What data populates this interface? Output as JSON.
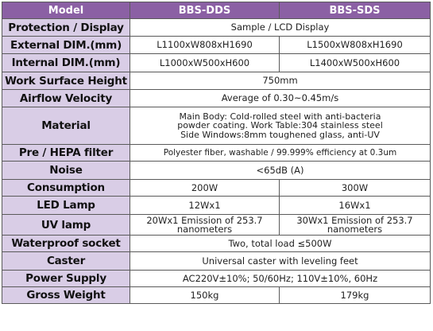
{
  "header": {
    "model": "Model",
    "col_a": "BBS-DDS",
    "col_b": "BBS-SDS"
  },
  "rows": {
    "protection": {
      "label": "Protection / Display",
      "value": "Sample / LCD Display"
    },
    "external": {
      "label": "External DIM.(mm)",
      "a": "L1100xW808xH1690",
      "b": "L1500xW808xH1690"
    },
    "internal": {
      "label": "Internal DIM.(mm)",
      "a": "L1000xW500xH600",
      "b": "L1400xW500xH600"
    },
    "work_height": {
      "label": "Work Surface Height",
      "value": "750mm"
    },
    "airflow": {
      "label": "Airflow Velocity",
      "value": "Average of 0.30~0.45m/s"
    },
    "material": {
      "label": "Material",
      "line1": "Main Body: Cold-rolled steel with anti-bacteria",
      "line2": "powder coating.  Work Table:304 stainless steel",
      "line3": "Side Windows:8mm toughened glass, anti-UV"
    },
    "filter": {
      "label": "Pre / HEPA filter",
      "value": "Polyester fiber, washable / 99.999% efficiency at 0.3um"
    },
    "noise": {
      "label": "Noise",
      "value": "<65dB (A)"
    },
    "consumption": {
      "label": "Consumption",
      "a": "200W",
      "b": "300W"
    },
    "led": {
      "label": "LED Lamp",
      "a": "12Wx1",
      "b": "16Wx1"
    },
    "uv": {
      "label": "UV lamp",
      "a_line1": "20Wx1 Emission of 253.7",
      "a_line2": "nanometers",
      "b_line1": "30Wx1 Emission of 253.7",
      "b_line2": "nanometers"
    },
    "socket": {
      "label": "Waterproof socket",
      "value": "Two, total load ≤500W"
    },
    "caster": {
      "label": "Caster",
      "value": "Universal caster with leveling feet"
    },
    "power": {
      "label": "Power Supply",
      "value": "AC220V±10%; 50/60Hz;  110V±10%, 60Hz"
    },
    "weight": {
      "label": "Gross Weight",
      "a": "150kg",
      "b": "179kg"
    }
  },
  "colors": {
    "header_bg": "#8b60a4",
    "label_bg": "#d9cde6",
    "border": "#5a5a5a"
  }
}
